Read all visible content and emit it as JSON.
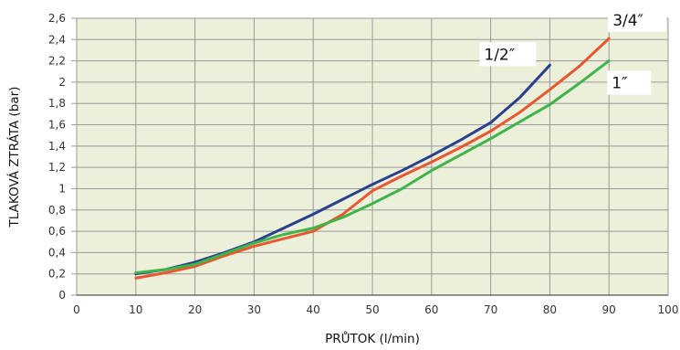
{
  "chart_data": {
    "type": "line",
    "title": "",
    "xlabel": "PRŮTOK (l/min)",
    "ylabel": "TLAKOVÁ ZTRÁTA (bar)",
    "xlim": [
      0,
      100
    ],
    "ylim": [
      0,
      2.6
    ],
    "x_ticks": [
      "0",
      "10",
      "20",
      "30",
      "40",
      "50",
      "60",
      "70",
      "80",
      "90",
      "100"
    ],
    "y_ticks": [
      "0",
      "0,2",
      "0,4",
      "0,6",
      "0,8",
      "1",
      "1,2",
      "1,4",
      "1,6",
      "1,8",
      "2",
      "2,2",
      "2,4",
      "2,6"
    ],
    "grid": true,
    "legend": "labels next to line ends",
    "series": [
      {
        "name": "1/2″",
        "color": "#2a3f8f",
        "x": [
          10,
          15,
          20,
          25,
          30,
          35,
          40,
          45,
          50,
          55,
          60,
          65,
          70,
          75,
          80
        ],
        "y": [
          0.2,
          0.24,
          0.31,
          0.4,
          0.5,
          0.63,
          0.76,
          0.9,
          1.04,
          1.17,
          1.31,
          1.46,
          1.62,
          1.86,
          2.16
        ]
      },
      {
        "name": "3/4″",
        "color": "#e8572f",
        "x": [
          10,
          15,
          20,
          25,
          30,
          35,
          40,
          45,
          50,
          55,
          60,
          65,
          70,
          75,
          80,
          85,
          90
        ],
        "y": [
          0.16,
          0.21,
          0.27,
          0.37,
          0.46,
          0.53,
          0.6,
          0.76,
          0.98,
          1.12,
          1.25,
          1.39,
          1.54,
          1.72,
          1.93,
          2.15,
          2.41
        ]
      },
      {
        "name": "1″",
        "color": "#3eb54a",
        "x": [
          10,
          15,
          20,
          25,
          30,
          35,
          40,
          45,
          50,
          55,
          60,
          65,
          70,
          75,
          80,
          85,
          90
        ],
        "y": [
          0.21,
          0.24,
          0.29,
          0.39,
          0.49,
          0.57,
          0.63,
          0.73,
          0.86,
          1.0,
          1.17,
          1.32,
          1.47,
          1.63,
          1.79,
          1.99,
          2.2
        ]
      }
    ],
    "colors": {
      "plot_background": "#ecefd9",
      "grid": "#9a9a9a",
      "axis": "#555555"
    }
  }
}
